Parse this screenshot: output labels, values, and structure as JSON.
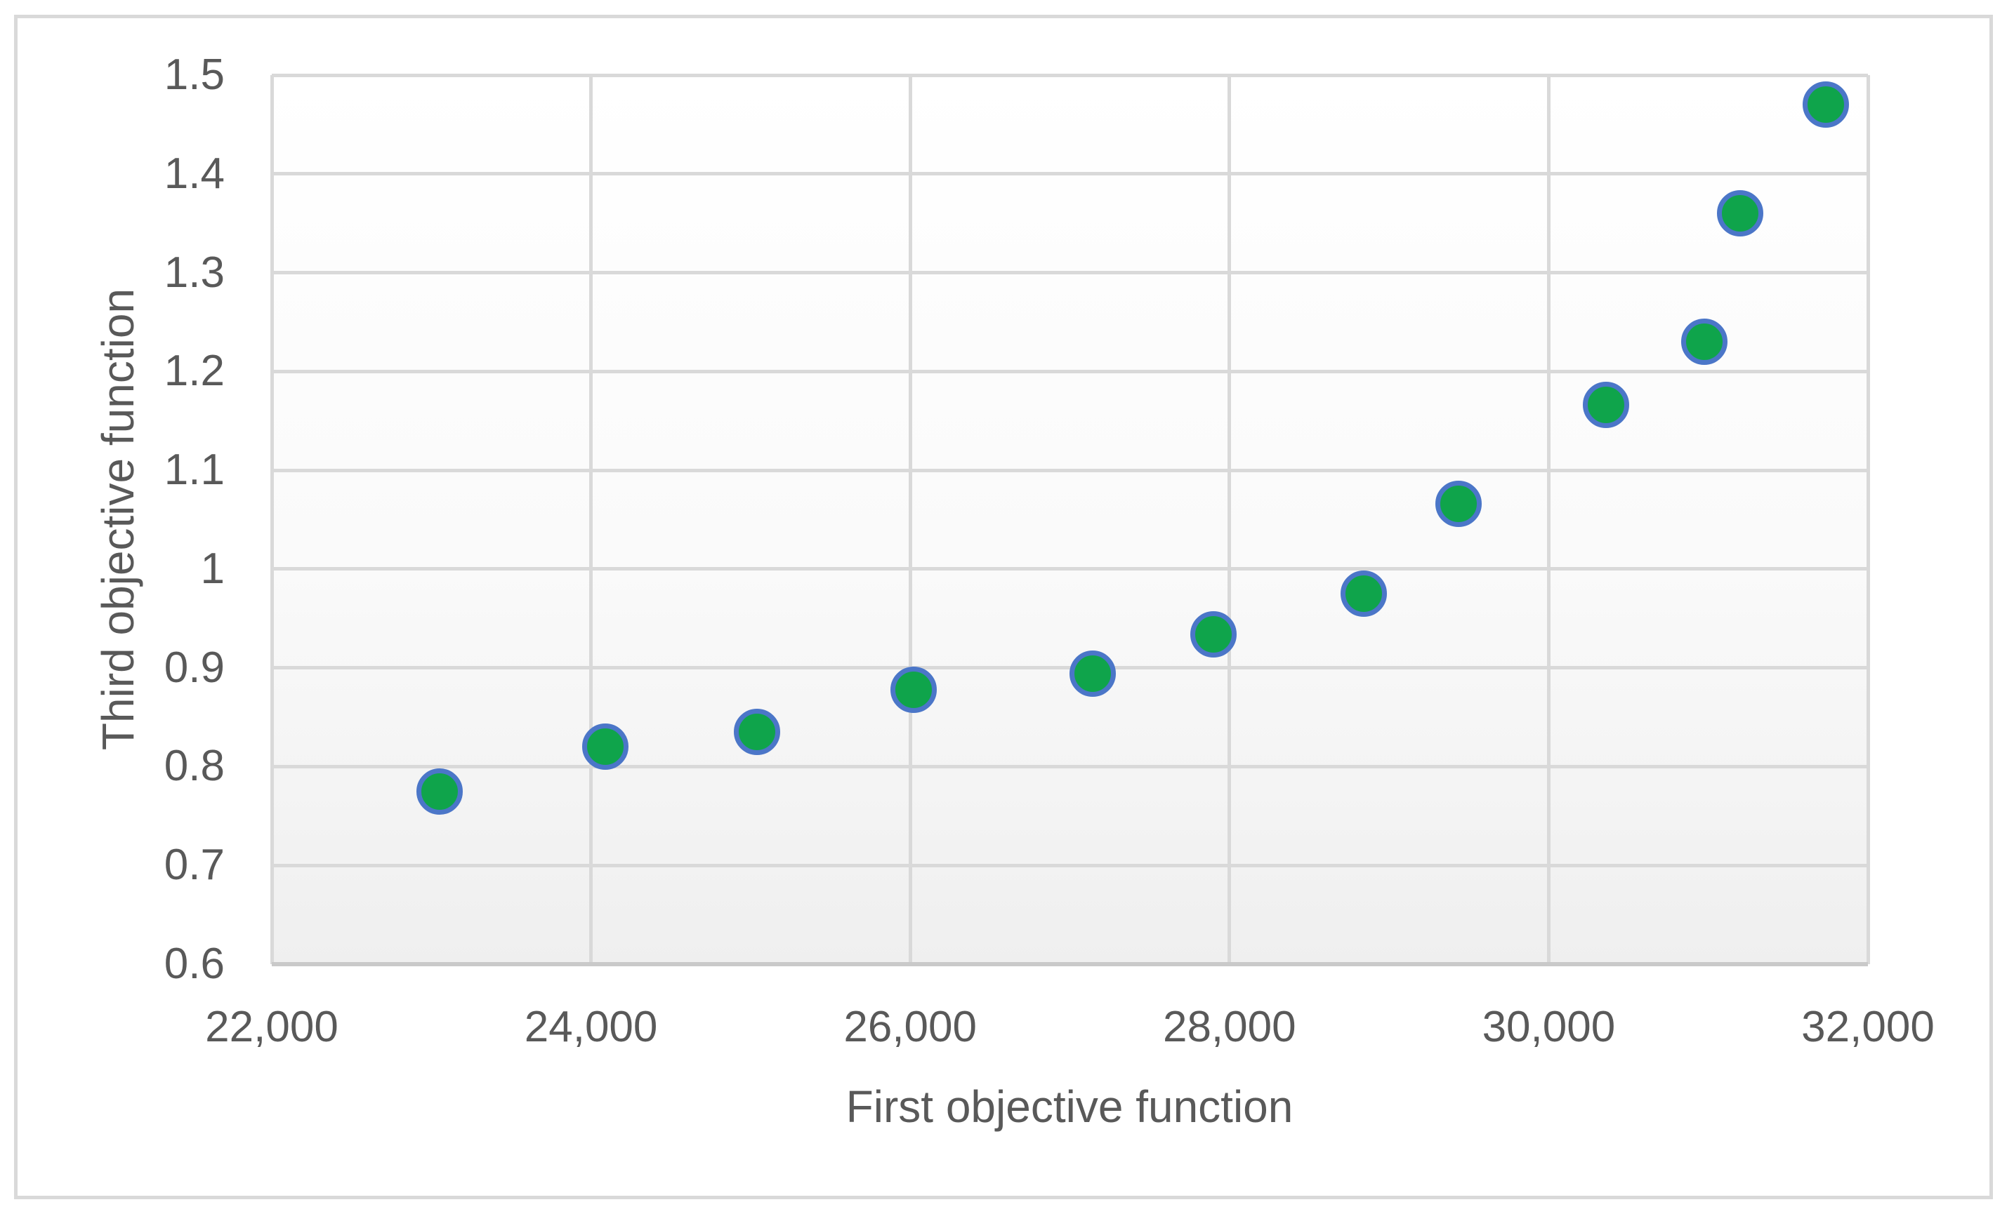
{
  "chart_data": {
    "type": "scatter",
    "title": "",
    "xlabel": "First objective function",
    "ylabel": "Third objective function",
    "xlim": [
      22000,
      32000
    ],
    "ylim": [
      0.6,
      1.5
    ],
    "x_tick_step": 2000,
    "y_tick_step": 0.1,
    "x_tick_labels": [
      "22,000",
      "24,000",
      "26,000",
      "28,000",
      "30,000",
      "32,000"
    ],
    "y_tick_labels_top_down": [
      "1.5",
      "1.4",
      "1.3",
      "1.2",
      "1.1",
      "1",
      "0.9",
      "0.8",
      "0.7",
      "0.6"
    ],
    "grid": true,
    "legend": "none",
    "points": [
      [
        23050,
        0.775
      ],
      [
        24090,
        0.82
      ],
      [
        25040,
        0.835
      ],
      [
        26020,
        0.878
      ],
      [
        27145,
        0.894
      ],
      [
        27900,
        0.934
      ],
      [
        28840,
        0.975
      ],
      [
        29435,
        1.066
      ],
      [
        30360,
        1.166
      ],
      [
        30975,
        1.23
      ],
      [
        31200,
        1.36
      ],
      [
        31735,
        1.47
      ]
    ],
    "marker": {
      "shape": "circle",
      "fill": "#0fa44b",
      "stroke": "#4b76c8"
    },
    "colors": {
      "gridline": "#d9d9d9",
      "axis_line": "#c9c9c9",
      "axis_text": "#595959",
      "chart_border": "#d9d9d9",
      "plot_bg_top": "#ffffff",
      "plot_bg_bottom": "#efefef",
      "canvas_bg": "#ffffff"
    }
  }
}
